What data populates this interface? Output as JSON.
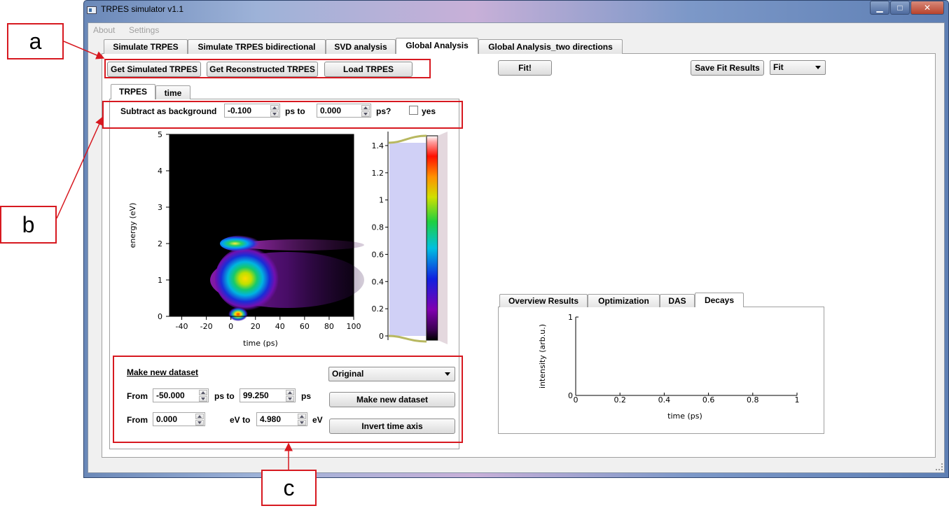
{
  "window": {
    "title": "TRPES simulator v1.1",
    "caption_buttons": [
      "▁",
      "□",
      "✕"
    ]
  },
  "menu": [
    "About",
    "Settings"
  ],
  "main_tabs": [
    "Simulate TRPES",
    "Simulate TRPES bidirectional",
    "SVD analysis",
    "Global Analysis",
    "Global Analysis_two directions"
  ],
  "active_main_tab": "Global Analysis",
  "toolbar": {
    "get_simulated": "Get Simulated TRPES",
    "get_reconstructed": "Get Reconstructed TRPES",
    "load": "Load TRPES",
    "fit": "Fit!",
    "save_fit": "Save Fit Results",
    "fit_mode": "Fit"
  },
  "inner_tabs": [
    "TRPES",
    "time"
  ],
  "background": {
    "label": "Subtract as background",
    "from_value": "-0.100",
    "to_label": "ps to",
    "to_value": "0.000",
    "question": "ps?",
    "checkbox_label": "yes",
    "checked": false
  },
  "trpes_plot": {
    "xlabel": "time (ps)",
    "ylabel": "energy (eV)",
    "x_ticks": [
      "-40",
      "-20",
      "0",
      "20",
      "40",
      "60",
      "80",
      "100"
    ],
    "y_ticks": [
      "0",
      "1",
      "2",
      "3",
      "4",
      "5"
    ]
  },
  "colorbar": {
    "ticks": [
      "0",
      "0.2",
      "0.4",
      "0.6",
      "0.8",
      "1",
      "1.2",
      "1.4"
    ]
  },
  "dataset": {
    "heading": "Make new dataset",
    "source": "Original",
    "from_label": "From",
    "time_from": "-50.000",
    "ps_to_label": "ps to",
    "time_to": "99.250",
    "ps_label": "ps",
    "energy_from": "0.000",
    "ev_to_label": "eV to",
    "energy_to": "4.980",
    "ev_label": "eV",
    "make_button": "Make new dataset",
    "invert_button": "Invert time axis"
  },
  "results_tabs": [
    "Overview Results",
    "Optimization",
    "DAS",
    "Decays"
  ],
  "active_results_tab": "Decays",
  "decays_plot": {
    "xlabel": "time (ps)",
    "ylabel": "intensity (arb.u.)",
    "x_ticks": [
      "0",
      "0.2",
      "0.4",
      "0.6",
      "0.8",
      "1"
    ],
    "y_ticks": [
      "0",
      "1"
    ]
  },
  "annotations": [
    "a",
    "b",
    "c"
  ],
  "colors": {
    "annotation_red": "#d71920",
    "panel_bg": "#f0f0f0"
  }
}
